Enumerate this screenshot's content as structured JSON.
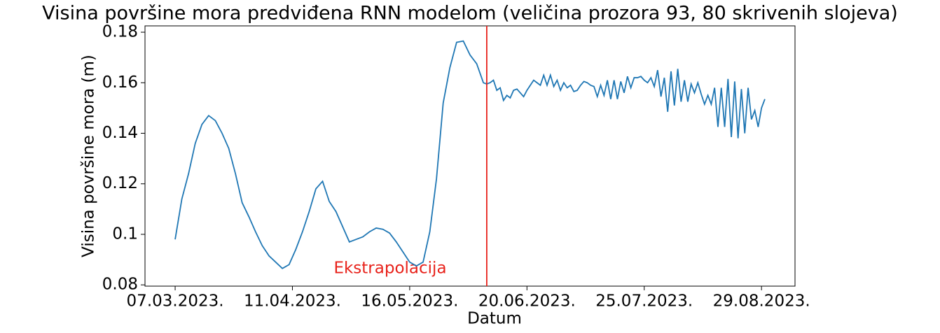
{
  "chart_data": {
    "type": "line",
    "title": "Visina površine mora predviđena RNN modelom (veličina prozora 93, 80 skrivenih slojeva)",
    "x_label": "Datum",
    "y_label": "Visina površine mora (m)",
    "annotation": "Ekstrapolacija",
    "vline": {
      "x": "2023-06-08",
      "color": "#e8221b"
    },
    "xlim": [
      "2023-02-26",
      "2023-09-08"
    ],
    "xticks": [
      {
        "value": "2023-03-07",
        "label": "07.03.2023."
      },
      {
        "value": "2023-04-11",
        "label": "11.04.2023."
      },
      {
        "value": "2023-05-16",
        "label": "16.05.2023."
      },
      {
        "value": "2023-06-20",
        "label": "20.06.2023."
      },
      {
        "value": "2023-07-25",
        "label": "25.07.2023."
      },
      {
        "value": "2023-08-29",
        "label": "29.08.2023."
      }
    ],
    "ylim": [
      0.0795,
      0.1825
    ],
    "yticks": [
      0.08,
      0.1,
      0.12,
      0.14,
      0.16,
      0.18
    ],
    "x": [
      "2023-03-07",
      "2023-03-09",
      "2023-03-11",
      "2023-03-13",
      "2023-03-15",
      "2023-03-17",
      "2023-03-19",
      "2023-03-21",
      "2023-03-23",
      "2023-03-25",
      "2023-03-27",
      "2023-03-29",
      "2023-03-31",
      "2023-04-02",
      "2023-04-04",
      "2023-04-06",
      "2023-04-08",
      "2023-04-10",
      "2023-04-12",
      "2023-04-14",
      "2023-04-16",
      "2023-04-18",
      "2023-04-20",
      "2023-04-22",
      "2023-04-24",
      "2023-04-26",
      "2023-04-28",
      "2023-04-30",
      "2023-05-02",
      "2023-05-04",
      "2023-05-06",
      "2023-05-08",
      "2023-05-10",
      "2023-05-12",
      "2023-05-14",
      "2023-05-16",
      "2023-05-18",
      "2023-05-20",
      "2023-05-22",
      "2023-05-24",
      "2023-05-26",
      "2023-05-28",
      "2023-05-30",
      "2023-06-01",
      "2023-06-03",
      "2023-06-05",
      "2023-06-07",
      "2023-06-08",
      "2023-06-09",
      "2023-06-10",
      "2023-06-11",
      "2023-06-12",
      "2023-06-13",
      "2023-06-14",
      "2023-06-15",
      "2023-06-16",
      "2023-06-17",
      "2023-06-18",
      "2023-06-19",
      "2023-06-20",
      "2023-06-21",
      "2023-06-22",
      "2023-06-23",
      "2023-06-24",
      "2023-06-25",
      "2023-06-26",
      "2023-06-27",
      "2023-06-28",
      "2023-06-29",
      "2023-06-30",
      "2023-07-01",
      "2023-07-02",
      "2023-07-03",
      "2023-07-04",
      "2023-07-05",
      "2023-07-06",
      "2023-07-07",
      "2023-07-08",
      "2023-07-09",
      "2023-07-10",
      "2023-07-11",
      "2023-07-12",
      "2023-07-13",
      "2023-07-14",
      "2023-07-15",
      "2023-07-16",
      "2023-07-17",
      "2023-07-18",
      "2023-07-19",
      "2023-07-20",
      "2023-07-21",
      "2023-07-22",
      "2023-07-23",
      "2023-07-24",
      "2023-07-25",
      "2023-07-26",
      "2023-07-27",
      "2023-07-28",
      "2023-07-29",
      "2023-07-30",
      "2023-07-31",
      "2023-08-01",
      "2023-08-02",
      "2023-08-03",
      "2023-08-04",
      "2023-08-05",
      "2023-08-06",
      "2023-08-07",
      "2023-08-08",
      "2023-08-09",
      "2023-08-10",
      "2023-08-11",
      "2023-08-12",
      "2023-08-13",
      "2023-08-14",
      "2023-08-15",
      "2023-08-16",
      "2023-08-17",
      "2023-08-18",
      "2023-08-19",
      "2023-08-20",
      "2023-08-21",
      "2023-08-22",
      "2023-08-23",
      "2023-08-24",
      "2023-08-25",
      "2023-08-26",
      "2023-08-27",
      "2023-08-28",
      "2023-08-29",
      "2023-08-30"
    ],
    "series": [
      {
        "color": "#1f77b4",
        "values": [
          0.098,
          0.114,
          0.124,
          0.136,
          0.1435,
          0.147,
          0.145,
          0.14,
          0.134,
          0.124,
          0.1125,
          0.107,
          0.101,
          0.0955,
          0.0915,
          0.089,
          0.0865,
          0.088,
          0.094,
          0.101,
          0.109,
          0.118,
          0.121,
          0.113,
          0.109,
          0.103,
          0.097,
          0.098,
          0.099,
          0.101,
          0.1025,
          0.102,
          0.1005,
          0.097,
          0.093,
          0.089,
          0.0875,
          0.089,
          0.101,
          0.122,
          0.152,
          0.166,
          0.176,
          0.1765,
          0.171,
          0.1675,
          0.16,
          0.1595,
          0.16,
          0.161,
          0.157,
          0.158,
          0.153,
          0.155,
          0.154,
          0.157,
          0.1575,
          0.156,
          0.1545,
          0.157,
          0.159,
          0.161,
          0.16,
          0.159,
          0.163,
          0.159,
          0.163,
          0.1585,
          0.161,
          0.157,
          0.16,
          0.158,
          0.159,
          0.1565,
          0.157,
          0.159,
          0.1605,
          0.16,
          0.159,
          0.1585,
          0.1545,
          0.159,
          0.155,
          0.161,
          0.1535,
          0.161,
          0.1535,
          0.1605,
          0.156,
          0.1625,
          0.158,
          0.162,
          0.162,
          0.1625,
          0.161,
          0.16,
          0.162,
          0.1585,
          0.165,
          0.1545,
          0.162,
          0.1485,
          0.1645,
          0.151,
          0.1655,
          0.1525,
          0.161,
          0.1525,
          0.1595,
          0.156,
          0.16,
          0.1555,
          0.1515,
          0.155,
          0.1515,
          0.158,
          0.1425,
          0.158,
          0.1425,
          0.1615,
          0.1385,
          0.1605,
          0.138,
          0.1575,
          0.14,
          0.158,
          0.1455,
          0.149,
          0.1425,
          0.15,
          0.1535
        ]
      }
    ]
  }
}
